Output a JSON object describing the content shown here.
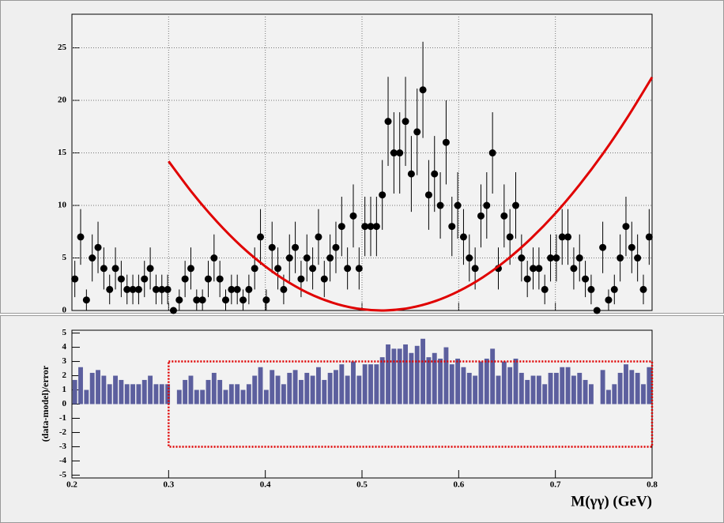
{
  "chart_data": [
    {
      "type": "errorbar",
      "x": [
        0.203,
        0.209,
        0.215,
        0.221,
        0.227,
        0.233,
        0.239,
        0.245,
        0.251,
        0.257,
        0.263,
        0.269,
        0.275,
        0.281,
        0.287,
        0.293,
        0.299,
        0.305,
        0.311,
        0.317,
        0.323,
        0.329,
        0.335,
        0.341,
        0.347,
        0.353,
        0.359,
        0.365,
        0.371,
        0.377,
        0.383,
        0.389,
        0.395,
        0.401,
        0.407,
        0.413,
        0.419,
        0.425,
        0.431,
        0.437,
        0.443,
        0.449,
        0.455,
        0.461,
        0.467,
        0.473,
        0.479,
        0.485,
        0.491,
        0.497,
        0.503,
        0.509,
        0.515,
        0.521,
        0.527,
        0.533,
        0.539,
        0.545,
        0.551,
        0.557,
        0.563,
        0.569,
        0.575,
        0.581,
        0.587,
        0.593,
        0.599,
        0.605,
        0.611,
        0.617,
        0.623,
        0.629,
        0.635,
        0.641,
        0.647,
        0.653,
        0.659,
        0.665,
        0.671,
        0.677,
        0.683,
        0.689,
        0.695,
        0.701,
        0.707,
        0.713,
        0.719,
        0.725,
        0.731,
        0.737,
        0.743,
        0.749,
        0.755,
        0.761,
        0.767,
        0.773,
        0.779,
        0.785,
        0.791,
        0.797
      ],
      "values": [
        3,
        7,
        1,
        5,
        6,
        4,
        2,
        4,
        3,
        2,
        2,
        2,
        3,
        4,
        2,
        2,
        2,
        0,
        1,
        3,
        4,
        1,
        1,
        3,
        5,
        3,
        1,
        2,
        2,
        1,
        2,
        4,
        7,
        1,
        6,
        4,
        2,
        5,
        6,
        3,
        5,
        4,
        7,
        3,
        5,
        6,
        8,
        4,
        9,
        4,
        8,
        8,
        8,
        11,
        18,
        15,
        15,
        18,
        13,
        17,
        21,
        11,
        13,
        10,
        16,
        8,
        10,
        7,
        5,
        4,
        9,
        10,
        15,
        4,
        9,
        7,
        10,
        5,
        3,
        4,
        4,
        2,
        5,
        5,
        7,
        7,
        4,
        5,
        3,
        2,
        0,
        6,
        1,
        2,
        5,
        8,
        6,
        5,
        2,
        7
      ],
      "errors": [
        1.73,
        2.65,
        1,
        2.24,
        2.45,
        2,
        1.41,
        2,
        1.73,
        1.41,
        1.41,
        1.41,
        1.73,
        2,
        1.41,
        1.41,
        1.41,
        0,
        1,
        1.73,
        2,
        1,
        1,
        1.73,
        2.24,
        1.73,
        1,
        1.41,
        1.41,
        1,
        1.41,
        2,
        2.65,
        1,
        2.45,
        2,
        1.41,
        2.24,
        2.45,
        1.73,
        2.24,
        2,
        2.65,
        1.73,
        2.24,
        2.45,
        2.83,
        2,
        3,
        2,
        2.83,
        2.83,
        2.83,
        3.32,
        4.24,
        3.87,
        3.87,
        4.24,
        3.61,
        4.12,
        4.58,
        3.32,
        3.61,
        3.16,
        4,
        2.83,
        3.16,
        2.65,
        2.24,
        2,
        3,
        3.16,
        3.87,
        2,
        3,
        2.65,
        3.16,
        2.24,
        1.73,
        2,
        2,
        1.41,
        2.24,
        2.24,
        2.65,
        2.65,
        2,
        2.24,
        1.73,
        1.41,
        0,
        2.45,
        1,
        1.41,
        2.24,
        2.83,
        2.45,
        2.24,
        1.41,
        2.65
      ],
      "color": "#000000",
      "curve": {
        "x": [
          0.3,
          0.325,
          0.35,
          0.375,
          0.4,
          0.425,
          0.45,
          0.475,
          0.5,
          0.525,
          0.55,
          0.575,
          0.6,
          0.625,
          0.65,
          0.675,
          0.7,
          0.725,
          0.75,
          0.775,
          0.8
        ],
        "y": [
          14.2,
          11.14,
          8.45,
          6.13,
          4.2,
          2.63,
          1.42,
          0.59,
          0.12,
          0.01,
          0.26,
          0.87,
          1.84,
          3.16,
          4.84,
          6.87,
          9.24,
          11.97,
          15.03,
          18.45,
          22.2
        ],
        "color": "#e00000"
      },
      "xlim": [
        0.2,
        0.8
      ],
      "ylim": [
        0,
        28.2
      ],
      "xticks": [
        0.2,
        0.3,
        0.4,
        0.5,
        0.6,
        0.7,
        0.8
      ],
      "yticks": [
        0,
        5,
        10,
        15,
        20,
        25
      ],
      "grid": true
    },
    {
      "type": "histogram",
      "bins": [
        0.2,
        0.206,
        0.212,
        0.218,
        0.224,
        0.23,
        0.236,
        0.242,
        0.248,
        0.254,
        0.26,
        0.266,
        0.272,
        0.278,
        0.284,
        0.29,
        0.296,
        0.302,
        0.308,
        0.314,
        0.32,
        0.326,
        0.332,
        0.338,
        0.344,
        0.35,
        0.356,
        0.362,
        0.368,
        0.374,
        0.38,
        0.386,
        0.392,
        0.398,
        0.404,
        0.41,
        0.416,
        0.422,
        0.428,
        0.434,
        0.44,
        0.446,
        0.452,
        0.458,
        0.464,
        0.47,
        0.476,
        0.482,
        0.488,
        0.494,
        0.5,
        0.506,
        0.512,
        0.518,
        0.524,
        0.53,
        0.536,
        0.542,
        0.548,
        0.554,
        0.56,
        0.566,
        0.572,
        0.578,
        0.584,
        0.59,
        0.596,
        0.602,
        0.608,
        0.614,
        0.62,
        0.626,
        0.632,
        0.638,
        0.644,
        0.65,
        0.656,
        0.662,
        0.668,
        0.674,
        0.68,
        0.686,
        0.692,
        0.698,
        0.704,
        0.71,
        0.716,
        0.722,
        0.728,
        0.734,
        0.74,
        0.746,
        0.752,
        0.758,
        0.764,
        0.77,
        0.776,
        0.782,
        0.788,
        0.794,
        0.8
      ],
      "values": [
        1.7,
        2.6,
        1,
        2.2,
        2.4,
        2,
        1.4,
        2,
        1.7,
        1.4,
        1.4,
        1.4,
        1.7,
        2,
        1.4,
        1.4,
        1.4,
        0,
        1,
        1.7,
        2,
        1,
        1,
        1.7,
        2.2,
        1.7,
        1,
        1.4,
        1.4,
        1,
        1.4,
        2,
        2.6,
        1,
        2.4,
        2,
        1.4,
        2.2,
        2.4,
        1.7,
        2.2,
        2,
        2.6,
        1.7,
        2.2,
        2.4,
        2.8,
        2,
        3,
        2,
        2.8,
        2.8,
        2.8,
        3.3,
        4.2,
        3.9,
        3.9,
        4.2,
        3.6,
        4.1,
        4.6,
        3.3,
        3.6,
        3.2,
        4,
        2.8,
        3.2,
        2.6,
        2.2,
        2,
        3,
        3.2,
        3.9,
        2,
        3,
        2.6,
        3.2,
        2.2,
        1.7,
        2,
        2,
        1.4,
        2.2,
        2.2,
        2.6,
        2.6,
        2,
        2.2,
        1.7,
        1.4,
        0,
        2.4,
        1,
        1.4,
        2.2,
        2.8,
        2.4,
        2.2,
        1.4,
        2.6
      ],
      "color": "#5c5f9e",
      "band": {
        "xlim": [
          0.3,
          0.8
        ],
        "ylim": [
          -3,
          3
        ],
        "color": "#e00000"
      },
      "xlim": [
        0.2,
        0.8
      ],
      "ylim": [
        -5.2,
        5.2
      ],
      "xticks": [
        0.2,
        0.3,
        0.4,
        0.5,
        0.6,
        0.7,
        0.8
      ],
      "yticks": [
        -5,
        -4,
        -3,
        -2,
        -1,
        0,
        1,
        2,
        3,
        4,
        5
      ],
      "xlabel": "M(γγ) (GeV)",
      "ylabel": "(data-model)/error"
    }
  ]
}
